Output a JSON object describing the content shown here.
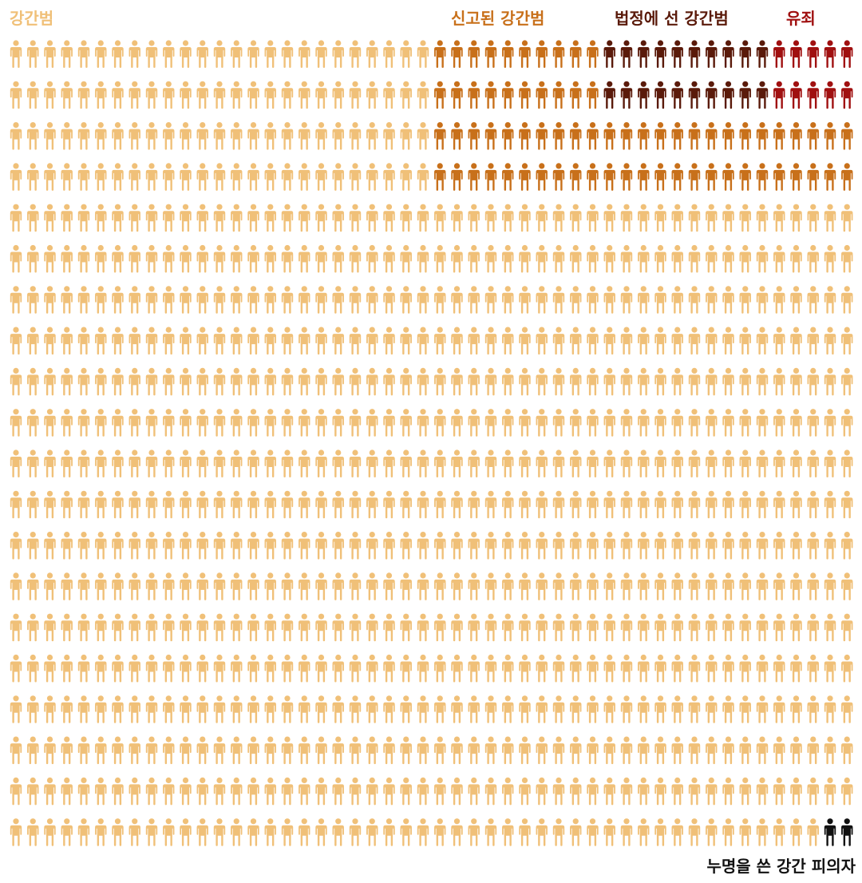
{
  "chart_data": {
    "type": "pictogram",
    "rows": 20,
    "cols": 50,
    "title": "",
    "categories": [
      {
        "key": "all",
        "label": "강간범",
        "color": "#f0c078"
      },
      {
        "key": "reported",
        "label": "신고된 강간범",
        "color": "#c8701a"
      },
      {
        "key": "tried",
        "label": "법정에 선 강간범",
        "color": "#5a1a0a"
      },
      {
        "key": "convicted",
        "label": "유죄",
        "color": "#a01010"
      },
      {
        "key": "falsely_accused",
        "label": "누명을 쓴 강간 피의자",
        "color": "#111111"
      }
    ],
    "regions": [
      {
        "category": "reported",
        "rows": [
          0,
          3
        ],
        "cols": [
          25,
          49
        ]
      },
      {
        "category": "tried",
        "rows": [
          0,
          1
        ],
        "cols": [
          35,
          49
        ]
      },
      {
        "category": "convicted",
        "rows": [
          0,
          1
        ],
        "cols": [
          45,
          49
        ]
      },
      {
        "category": "falsely_accused",
        "rows": [
          19,
          19
        ],
        "cols": [
          48,
          49
        ]
      }
    ],
    "counts": {
      "all": 1000,
      "reported": 100,
      "tried": 30,
      "convicted": 10,
      "falsely_accused": 2
    }
  }
}
